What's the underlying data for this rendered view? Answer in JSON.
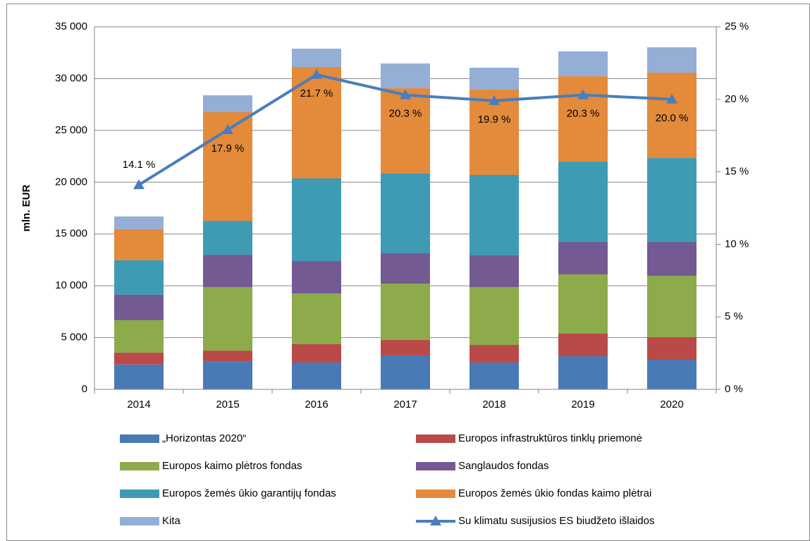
{
  "chart_data": {
    "type": "stacked-bar-line",
    "y_label": "mln. EUR",
    "categories": [
      "2014",
      "2015",
      "2016",
      "2017",
      "2018",
      "2019",
      "2020"
    ],
    "ylim": [
      0,
      35000
    ],
    "yticks": [
      0,
      {
        "value": 5000,
        "label": "5 000"
      },
      {
        "value": 10000,
        "label": "10 000"
      },
      {
        "value": 15000,
        "label": "15 000"
      },
      {
        "value": 20000,
        "label": "20 000"
      },
      {
        "value": 25000,
        "label": "25 000"
      },
      {
        "value": 30000,
        "label": "30 000"
      },
      {
        "value": 35000,
        "label": "35 000"
      }
    ],
    "y2lim": [
      0,
      25
    ],
    "y2ticks": [
      {
        "value": 0,
        "label": "0 %"
      },
      {
        "value": 5,
        "label": "5 %"
      },
      {
        "value": 10,
        "label": "10 %"
      },
      {
        "value": 15,
        "label": "15 %"
      },
      {
        "value": 20,
        "label": "20 %"
      },
      {
        "value": 25,
        "label": "25 %"
      }
    ],
    "grid": true,
    "legend": "bottom",
    "series": [
      {
        "name": "„Horizontas 2020“",
        "color": "#4a7ab5",
        "values": [
          2400,
          2720,
          2590,
          3270,
          2590,
          3200,
          2860
        ]
      },
      {
        "name": "Europos infrastruktūros tinklų priemonė",
        "color": "#b94a48",
        "values": [
          1150,
          1020,
          1770,
          1500,
          1700,
          2180,
          2180
        ]
      },
      {
        "name": "Europos kaimo plėtros fondas",
        "color": "#8eab4b",
        "values": [
          3130,
          6130,
          4900,
          5440,
          5580,
          5720,
          5920
        ]
      },
      {
        "name": "Sanglaudos fondas",
        "color": "#735a93",
        "values": [
          2450,
          3130,
          3130,
          2930,
          3070,
          3130,
          3270
        ]
      },
      {
        "name": "Europos žemės ūkio garantijų fondas",
        "color": "#3f9bb4",
        "values": [
          3340,
          3270,
          7970,
          7700,
          7760,
          7760,
          8100
        ]
      },
      {
        "name": "Europos žemės ūkio fondas kaimo plėtrai",
        "color": "#e38a3b",
        "values": [
          3000,
          10490,
          10760,
          8230,
          8240,
          8240,
          8240
        ]
      },
      {
        "name": "Kita",
        "color": "#95aed6",
        "values": [
          1220,
          1630,
          1770,
          2390,
          2110,
          2390,
          2450
        ]
      },
      {
        "name": "Su klimatu susijusios ES biudžeto išlaidos",
        "color": "#4a7ebb",
        "axis": "y2",
        "type": "line",
        "values": [
          14.1,
          17.9,
          21.7,
          20.3,
          19.9,
          20.3,
          20.0
        ],
        "value_labels": [
          "14.1 %",
          "17.9 %",
          "21.7 %",
          "20.3 %",
          "19.9 %",
          "20.3 %",
          "20.0 %"
        ]
      }
    ]
  }
}
